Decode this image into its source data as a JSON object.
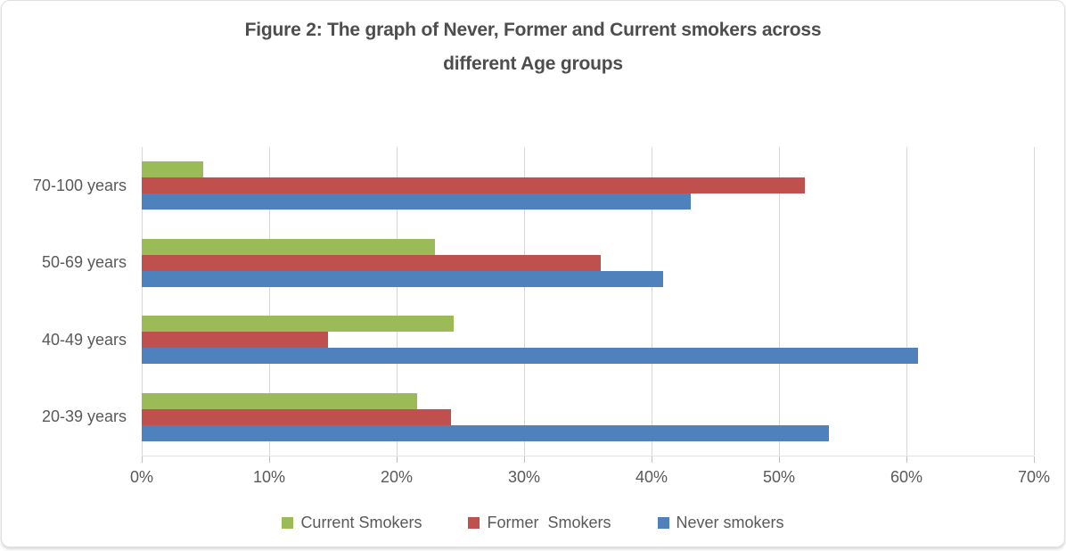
{
  "chart_data": {
    "type": "bar",
    "orientation": "horizontal",
    "title": "Figure 2: The graph of Never, Former and Current smokers across different Age groups",
    "title_lines": [
      "Figure 2: The graph of Never, Former and Current smokers across",
      "different Age groups"
    ],
    "categories": [
      "70-100 years",
      "50-69 years",
      "40-49 years",
      "20-39 years"
    ],
    "series": [
      {
        "name": "Current Smokers",
        "color": "#9BBB59",
        "values": [
          4.8,
          23.0,
          24.5,
          21.6
        ]
      },
      {
        "name": "Former  Smokers",
        "color": "#C0504D",
        "values": [
          52.0,
          36.0,
          14.6,
          24.3
        ]
      },
      {
        "name": "Never smokers",
        "color": "#4F81BD",
        "values": [
          43.1,
          40.9,
          60.9,
          53.9
        ]
      }
    ],
    "x_axis": {
      "min": 0,
      "max": 70,
      "tick_step": 10,
      "tick_labels": [
        "0%",
        "10%",
        "20%",
        "30%",
        "40%",
        "50%",
        "60%",
        "70%"
      ]
    },
    "xlabel": "",
    "ylabel": "",
    "grid": true,
    "legend_position": "bottom"
  },
  "colors": {
    "title_text": "#4D4D4D",
    "label_text": "#595959",
    "gridline": "#D6D6D6",
    "tick": "#BFBFBF",
    "axis_line": "#DDE4EE",
    "card_border": "#E0E0E0",
    "background": "#FFFFFF"
  }
}
